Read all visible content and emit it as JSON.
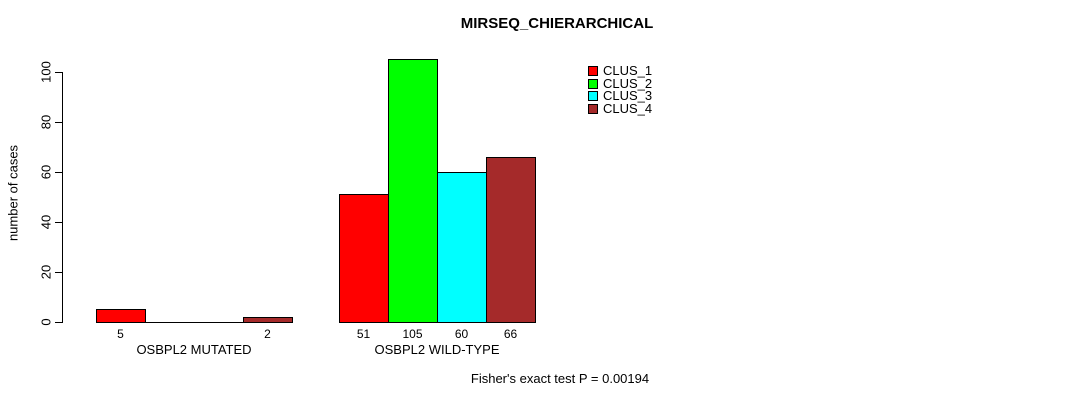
{
  "title": "MIRSEQ_CHIERARCHICAL",
  "y_axis": {
    "label": "number of cases",
    "ticks": [
      0,
      20,
      40,
      60,
      80,
      100
    ]
  },
  "footer": "Fisher's exact test P = 0.00194",
  "legend": {
    "items": [
      {
        "label": "CLUS_1",
        "color": "#FF0000"
      },
      {
        "label": "CLUS_2",
        "color": "#00FF00"
      },
      {
        "label": "CLUS_3",
        "color": "#00FFFF"
      },
      {
        "label": "CLUS_4",
        "color": "#A52A2A"
      }
    ]
  },
  "chart_data": {
    "type": "bar",
    "categories": [
      "OSBPL2 MUTATED",
      "OSBPL2 WILD-TYPE"
    ],
    "series": [
      {
        "name": "CLUS_1",
        "color": "#FF0000",
        "values": [
          5,
          51
        ]
      },
      {
        "name": "CLUS_2",
        "color": "#00FF00",
        "values": [
          0,
          105
        ]
      },
      {
        "name": "CLUS_3",
        "color": "#00FFFF",
        "values": [
          0,
          60
        ]
      },
      {
        "name": "CLUS_4",
        "color": "#A52A2A",
        "values": [
          2,
          66
        ]
      }
    ],
    "bar_value_labels": [
      [
        "5",
        "",
        "",
        "2"
      ],
      [
        "51",
        "105",
        "60",
        "66"
      ]
    ],
    "title": "MIRSEQ_CHIERARCHICAL",
    "xlabel": "",
    "ylabel": "number of cases",
    "ylim": [
      0,
      100
    ],
    "yticks": [
      0,
      20,
      40,
      60,
      80,
      100
    ],
    "grid": false,
    "legend_position": "top-right-inside",
    "annotation": "Fisher's exact test P = 0.00194"
  }
}
